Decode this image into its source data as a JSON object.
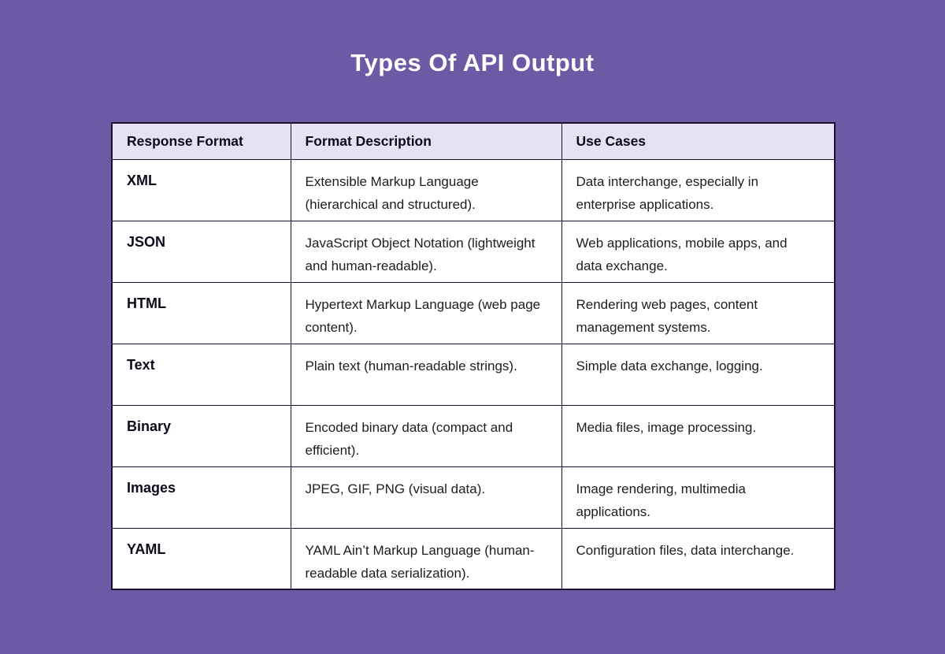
{
  "page": {
    "title": "Types Of API Output"
  },
  "colors": {
    "background": "#6c5aa5",
    "title_text": "#ffffff",
    "table_border": "#160f2d",
    "header_background": "#e6e2f1",
    "row_background": "#ffffff",
    "header_text": "#0d0a1a",
    "body_text": "#1d1d1f"
  },
  "table": {
    "columns": [
      "Response Format",
      "Format Description",
      "Use Cases"
    ],
    "rows": [
      {
        "format": "XML",
        "description": "Extensible Markup Language (hierarchical and structured).",
        "use_cases": "Data interchange, especially in enterprise applications."
      },
      {
        "format": "JSON",
        "description": "JavaScript Object Notation (lightweight and human-readable).",
        "use_cases": "Web applications, mobile apps, and data exchange."
      },
      {
        "format": "HTML",
        "description": "Hypertext Markup Language (web page content).",
        "use_cases": "Rendering web pages, content management systems."
      },
      {
        "format": "Text",
        "description": "Plain text (human-readable strings).",
        "use_cases": "Simple data exchange, logging."
      },
      {
        "format": "Binary",
        "description": "Encoded binary data (compact and efficient).",
        "use_cases": "Media files, image processing."
      },
      {
        "format": "Images",
        "description": "JPEG, GIF, PNG (visual data).",
        "use_cases": "Image rendering, multimedia applications."
      },
      {
        "format": "YAML",
        "description": "YAML Ain’t Markup Language (human-readable data serialization).",
        "use_cases": "Configuration files, data interchange."
      }
    ]
  }
}
